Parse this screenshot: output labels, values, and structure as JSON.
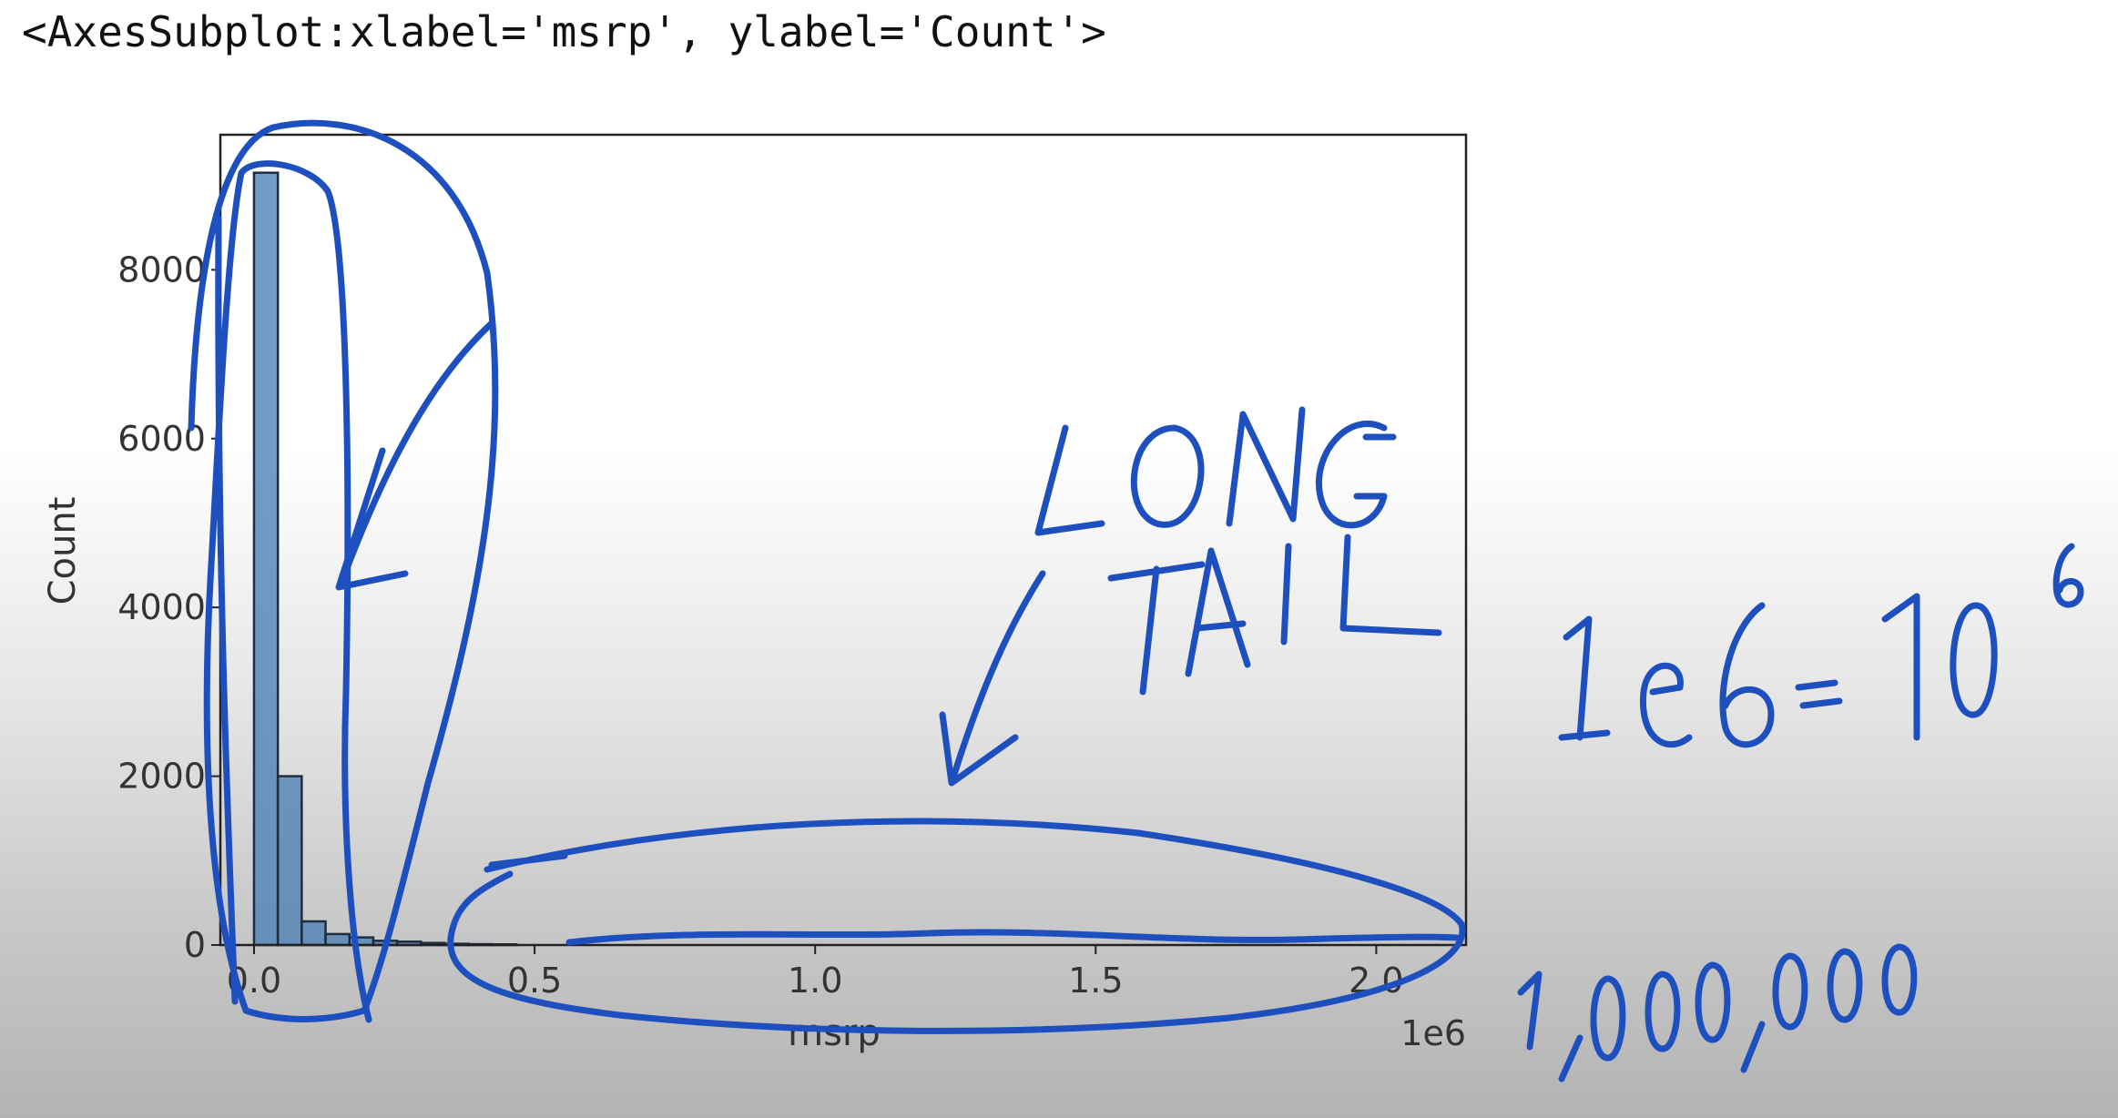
{
  "output_repr": "<AxesSubplot:xlabel='msrp', ylabel='Count'>",
  "chart_data": {
    "type": "bar",
    "xlabel": "msrp",
    "ylabel": "Count",
    "x_offset_label": "1e6",
    "xlim": [
      -0.06,
      2.16
    ],
    "ylim": [
      0,
      9600
    ],
    "x_ticks": [
      0.0,
      0.5,
      1.0,
      1.5,
      2.0
    ],
    "x_tick_labels": [
      "0.0",
      "0.5",
      "1.0",
      "1.5",
      "2.0"
    ],
    "y_ticks": [
      0,
      2000,
      4000,
      6000,
      8000
    ],
    "y_tick_labels": [
      "0",
      "2000",
      "4000",
      "6000",
      "8000"
    ],
    "bin_width": 0.0425,
    "bin_starts": [
      0.0,
      0.0425,
      0.085,
      0.1275,
      0.17,
      0.2125,
      0.255,
      0.2975,
      0.34,
      0.3825,
      0.425
    ],
    "counts": [
      9150,
      2000,
      280,
      130,
      90,
      50,
      40,
      25,
      15,
      10,
      8
    ],
    "grid": false,
    "legend": "none"
  },
  "annotations": {
    "arrow_text": [
      "LONG",
      "TAIL"
    ],
    "equation": "1e6 = 10",
    "exponent": "6",
    "number": "1,000,000"
  },
  "colors": {
    "bar": "#4a7fb5",
    "ink": "#1d4fbf"
  }
}
